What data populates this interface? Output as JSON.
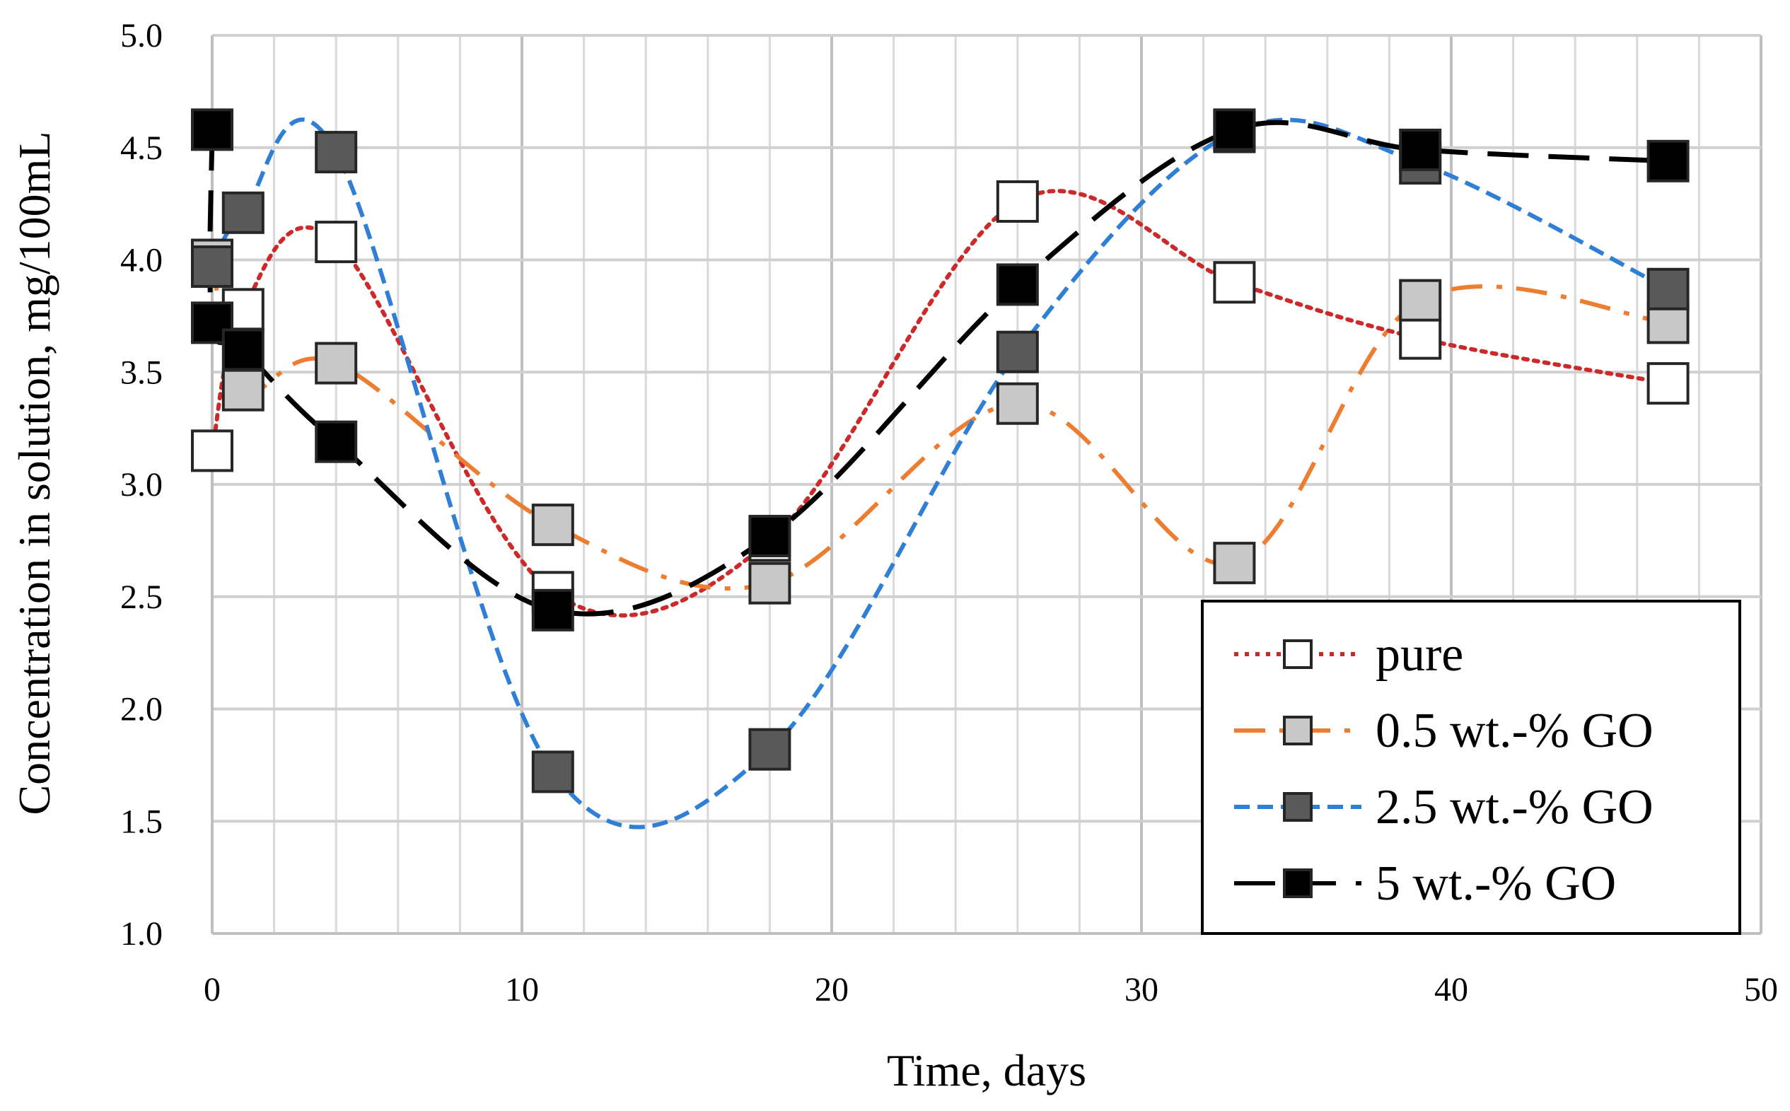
{
  "chart_data": {
    "type": "scatter",
    "title": "",
    "xlabel": "Time, days",
    "ylabel": "Concentration in solution, mg/100mL",
    "xlim": [
      0,
      50
    ],
    "ylim": [
      1.0,
      5.0
    ],
    "x_major_step": 10,
    "x_minor_step": 2,
    "y_step": 0.5,
    "x_tick_labels": [
      "0",
      "10",
      "20",
      "30",
      "40",
      "50"
    ],
    "y_tick_labels": [
      "1.0",
      "1.5",
      "2.0",
      "2.5",
      "3.0",
      "3.5",
      "4.0",
      "4.5",
      "5.0"
    ],
    "grid": true,
    "legend_position": "bottom-right",
    "series": [
      {
        "name": "pure",
        "line_color": "#cc2a2a",
        "line_style": "dotted",
        "marker_fill": "#ffffff",
        "x": [
          0,
          1,
          4,
          11,
          18,
          26,
          33,
          39,
          47
        ],
        "y": [
          3.15,
          3.78,
          4.08,
          2.52,
          2.75,
          4.26,
          3.9,
          3.65,
          3.45
        ]
      },
      {
        "name": "0.5 wt.-% GO",
        "line_color": "#ed7d31",
        "line_style": "dashdot",
        "marker_fill": "#c8c8c8",
        "x": [
          0,
          1,
          4,
          11,
          18,
          26,
          33,
          39,
          47
        ],
        "y": [
          4.0,
          3.42,
          3.54,
          2.82,
          2.56,
          3.36,
          2.65,
          3.82,
          3.72
        ]
      },
      {
        "name": "2.5 wt.-% GO",
        "line_color": "#2f7fd6",
        "line_style": "dashed",
        "marker_fill": "#595959",
        "x": [
          0,
          1,
          4,
          11,
          18,
          26,
          33,
          39,
          47
        ],
        "y": [
          3.97,
          4.21,
          4.48,
          1.72,
          1.82,
          3.59,
          4.57,
          4.43,
          3.87
        ]
      },
      {
        "name": "5 wt.-% GO",
        "line_color": "#000000",
        "line_style": "longdash",
        "marker_fill": "#000000",
        "x": [
          0,
          0,
          1,
          4,
          11,
          18,
          26,
          33,
          39,
          47
        ],
        "y": [
          4.58,
          3.72,
          3.6,
          3.19,
          2.44,
          2.77,
          3.89,
          4.58,
          4.49,
          4.44
        ]
      }
    ]
  }
}
